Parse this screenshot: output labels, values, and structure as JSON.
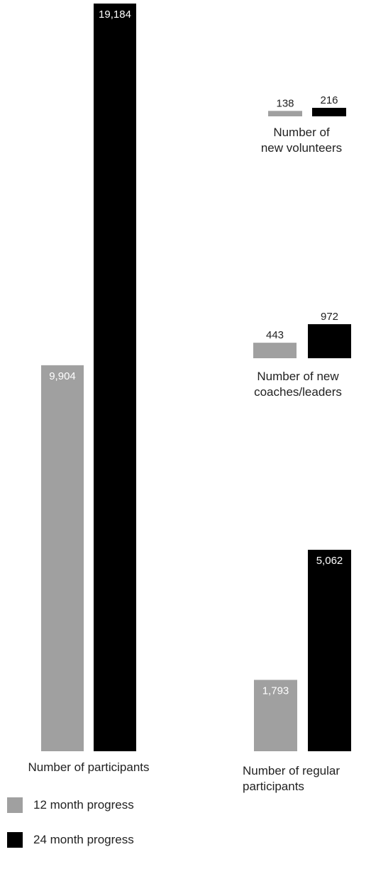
{
  "chart_data": [
    {
      "type": "bar",
      "title": "",
      "categories": [
        "Number of participants"
      ],
      "series": [
        {
          "name": "12 month progress",
          "values": [
            9904
          ]
        },
        {
          "name": "24 month progress",
          "values": [
            19184
          ]
        }
      ],
      "value_labels": {
        "12 month progress": [
          "9,904"
        ],
        "24 month progress": [
          "19,184"
        ]
      },
      "xlabel": "Number of participants",
      "ylabel": ""
    },
    {
      "type": "bar",
      "title": "",
      "categories": [
        "Number of new volunteers"
      ],
      "series": [
        {
          "name": "12 month progress",
          "values": [
            138
          ]
        },
        {
          "name": "24 month progress",
          "values": [
            216
          ]
        }
      ],
      "value_labels": {
        "12 month progress": [
          "138"
        ],
        "24 month progress": [
          "216"
        ]
      },
      "xlabel": "Number of new volunteers",
      "ylabel": ""
    },
    {
      "type": "bar",
      "title": "",
      "categories": [
        "Number of new coaches/leaders"
      ],
      "series": [
        {
          "name": "12 month progress",
          "values": [
            443
          ]
        },
        {
          "name": "24 month progress",
          "values": [
            972
          ]
        }
      ],
      "value_labels": {
        "12 month progress": [
          "443"
        ],
        "24 month progress": [
          "972"
        ]
      },
      "xlabel": "Number of new coaches/leaders",
      "ylabel": ""
    },
    {
      "type": "bar",
      "title": "",
      "categories": [
        "Number of regular participants"
      ],
      "series": [
        {
          "name": "12 month progress",
          "values": [
            1793
          ]
        },
        {
          "name": "24 month progress",
          "values": [
            5062
          ]
        }
      ],
      "value_labels": {
        "12 month progress": [
          "1,793"
        ],
        "24 month progress": [
          "5,062"
        ]
      },
      "xlabel": "Number of regular participants",
      "ylabel": ""
    }
  ],
  "captions": {
    "participants": "Number of participants",
    "volunteers_line1": "Number of",
    "volunteers_line2": "new volunteers",
    "coaches_line1": "Number of new",
    "coaches_line2": "coaches/leaders",
    "regular_line1": "Number of regular",
    "regular_line2": "participants"
  },
  "legend": [
    {
      "label": "12 month progress",
      "color": "#a0a0a0"
    },
    {
      "label": "24 month progress",
      "color": "#000000"
    }
  ],
  "colors": {
    "series_12": "#a0a0a0",
    "series_24": "#000000",
    "text": "#222222"
  }
}
